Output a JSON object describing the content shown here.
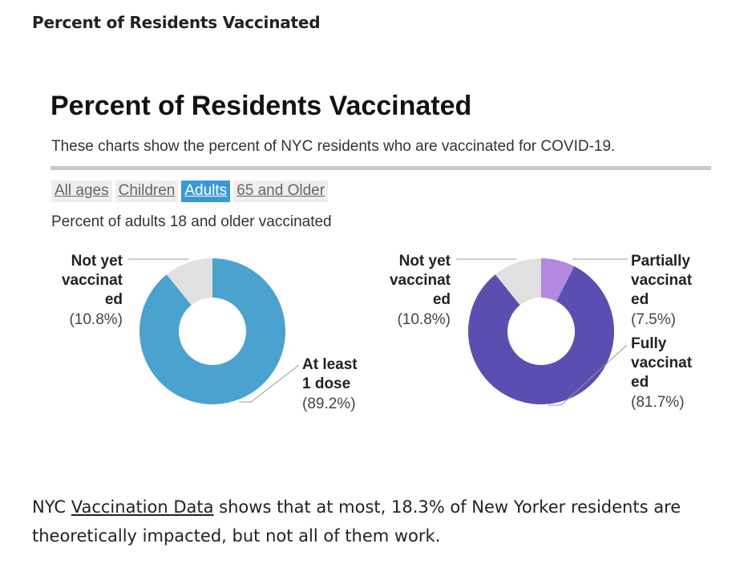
{
  "page_heading": "Percent of Residents Vaccinated",
  "embed": {
    "title": "Percent of Residents Vaccinated",
    "subtitle": "These charts show the percent of NYC residents who are vaccinated for COVID-19.",
    "tabs": [
      {
        "label": "All ages",
        "active": false
      },
      {
        "label": "Children",
        "active": false
      },
      {
        "label": "Adults",
        "active": true
      },
      {
        "label": "65 and Older",
        "active": false
      }
    ],
    "caption": "Percent of adults 18 and older vaccinated"
  },
  "colors": {
    "at_least_1_dose": "#4aa3cf",
    "not_yet": "#e0e0e0",
    "partially": "#b388e0",
    "fully": "#5a4fb0",
    "active_tab": "#3b98d8"
  },
  "chart_data": [
    {
      "type": "pie",
      "slices": [
        {
          "label_lines": [
            "Not yet",
            "vaccinat",
            "ed"
          ],
          "value": 10.8,
          "value_label": "(10.8%)"
        },
        {
          "label_lines": [
            "At least",
            "1 dose"
          ],
          "value": 89.2,
          "value_label": "(89.2%)"
        }
      ]
    },
    {
      "type": "pie",
      "slices": [
        {
          "label_lines": [
            "Not yet",
            "vaccinat",
            "ed"
          ],
          "value": 10.8,
          "value_label": "(10.8%)"
        },
        {
          "label_lines": [
            "Partially",
            "vaccinat",
            "ed"
          ],
          "value": 7.5,
          "value_label": "(7.5%)"
        },
        {
          "label_lines": [
            "Fully",
            "vaccinat",
            "ed"
          ],
          "value": 81.7,
          "value_label": "(81.7%)"
        }
      ]
    }
  ],
  "footer": {
    "prefix": "NYC ",
    "link": "Vaccination Data",
    "suffix": " shows that at most, 18.3% of New Yorker residents are theoretically impacted, but not all of them work."
  }
}
